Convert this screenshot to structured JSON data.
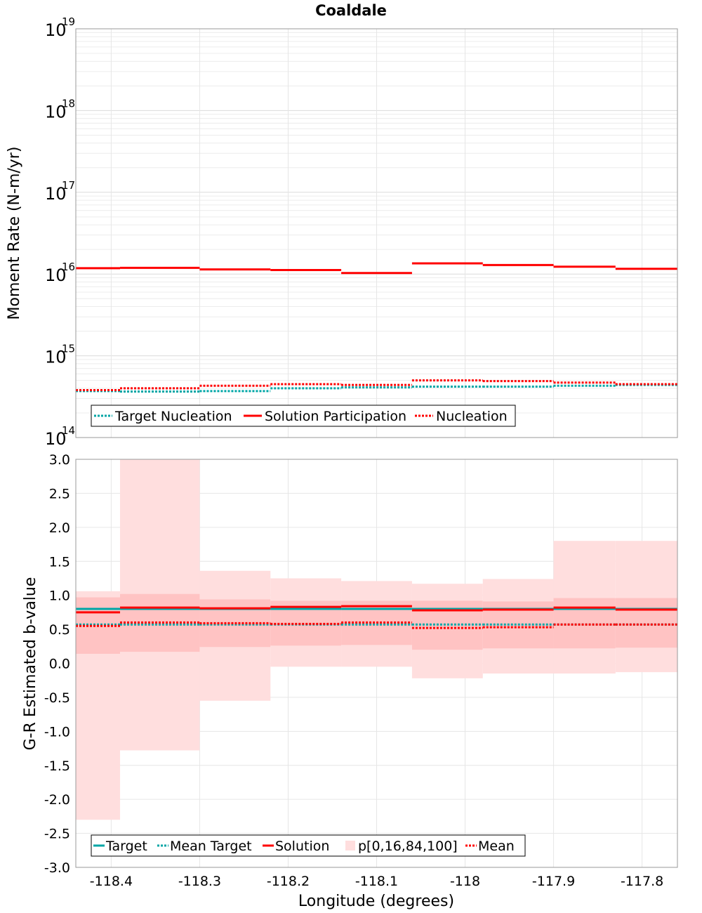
{
  "chart_data": [
    {
      "type": "line",
      "title": "Coaldale",
      "ylabel": "Moment Rate (N-m/yr)",
      "xlabel": "",
      "yscale": "log",
      "ylim": [
        100000000000000.0,
        1e+19
      ],
      "xlim": [
        -118.44,
        -117.76
      ],
      "y_tick_labels": [
        {
          "base": "10",
          "exp": "14"
        },
        {
          "base": "10",
          "exp": "15"
        },
        {
          "base": "10",
          "exp": "16"
        },
        {
          "base": "10",
          "exp": "17"
        },
        {
          "base": "10",
          "exp": "18"
        },
        {
          "base": "10",
          "exp": "19"
        }
      ],
      "bin_edges": [
        -118.44,
        -118.39,
        -118.3,
        -118.22,
        -118.14,
        -118.06,
        -117.98,
        -117.9,
        -117.83,
        -117.76
      ],
      "legend": {
        "placement": "bottom-left",
        "entries": [
          "Target Nucleation",
          "Solution Participation",
          "Nucleation"
        ]
      },
      "series": [
        {
          "name": "Target Nucleation",
          "style": "dotted",
          "color": "#00a6a6",
          "values": [
            370000000000000.0,
            365000000000000.0,
            370000000000000.0,
            400000000000000.0,
            410000000000000.0,
            420000000000000.0,
            420000000000000.0,
            430000000000000.0,
            440000000000000.0
          ]
        },
        {
          "name": "Solution Participation",
          "style": "solid",
          "color": "#ff0000",
          "values": [
            1.18e+16,
            1.19e+16,
            1.14e+16,
            1.12e+16,
            1.03e+16,
            1.35e+16,
            1.29e+16,
            1.23e+16,
            1.16e+16
          ]
        },
        {
          "name": "Nucleation",
          "style": "dotted",
          "color": "#ff0000",
          "values": [
            380000000000000.0,
            400000000000000.0,
            430000000000000.0,
            450000000000000.0,
            440000000000000.0,
            500000000000000.0,
            490000000000000.0,
            470000000000000.0,
            450000000000000.0
          ]
        }
      ]
    },
    {
      "type": "line",
      "title": "",
      "ylabel": "G-R Estimated b-value",
      "xlabel": "Longitude (degrees)",
      "ylim": [
        -3.0,
        3.0
      ],
      "xlim": [
        -118.44,
        -117.76
      ],
      "y_ticks": [
        {
          "v": 3.0,
          "label": "3.0"
        },
        {
          "v": 2.5,
          "label": "2.5"
        },
        {
          "v": 2.0,
          "label": "2.0"
        },
        {
          "v": 1.5,
          "label": "1.5"
        },
        {
          "v": 1.0,
          "label": "1.0"
        },
        {
          "v": 0.5,
          "label": "0.5"
        },
        {
          "v": 0.0,
          "label": "0.0"
        },
        {
          "v": -0.5,
          "label": "-0.5"
        },
        {
          "v": -1.0,
          "label": "-1.0"
        },
        {
          "v": -1.5,
          "label": "-1.5"
        },
        {
          "v": -2.0,
          "label": "-2.0"
        },
        {
          "v": -2.5,
          "label": "-2.5"
        },
        {
          "v": -3.0,
          "label": "-3.0"
        }
      ],
      "x_ticks": [
        {
          "v": -118.4,
          "label": "-118.4"
        },
        {
          "v": -118.3,
          "label": "-118.3"
        },
        {
          "v": -118.2,
          "label": "-118.2"
        },
        {
          "v": -118.1,
          "label": "-118.1"
        },
        {
          "v": -118.0,
          "label": "-118"
        },
        {
          "v": -117.9,
          "label": "-117.9"
        },
        {
          "v": -117.8,
          "label": "-117.8"
        }
      ],
      "bin_edges": [
        -118.44,
        -118.39,
        -118.3,
        -118.22,
        -118.14,
        -118.06,
        -117.98,
        -117.9,
        -117.83,
        -117.76
      ],
      "legend": {
        "placement": "bottom-left",
        "entries": [
          "Target",
          "Mean Target",
          "Solution",
          "p[0,16,84,100]",
          "Mean"
        ]
      },
      "bands": {
        "name": "p[0,16,84,100]",
        "p0": [
          -2.3,
          -1.28,
          -0.55,
          -0.05,
          -0.05,
          -0.22,
          -0.15,
          -0.15,
          -0.13
        ],
        "p16": [
          0.14,
          0.17,
          0.24,
          0.26,
          0.27,
          0.2,
          0.22,
          0.22,
          0.23
        ],
        "p84": [
          0.97,
          1.02,
          0.94,
          0.92,
          0.92,
          0.92,
          0.91,
          0.96,
          0.96
        ],
        "p100": [
          1.06,
          3.0,
          1.36,
          1.25,
          1.21,
          1.17,
          1.24,
          1.8,
          1.8
        ]
      },
      "series": [
        {
          "name": "Target",
          "style": "solid",
          "color": "#00a6a6",
          "values": [
            0.8,
            0.8,
            0.8,
            0.8,
            0.8,
            0.8,
            0.8,
            0.8,
            0.8
          ]
        },
        {
          "name": "Mean Target",
          "style": "dotted",
          "color": "#00a6a6",
          "values": [
            0.57,
            0.57,
            0.57,
            0.57,
            0.57,
            0.57,
            0.57,
            0.57,
            0.57
          ]
        },
        {
          "name": "Solution",
          "style": "solid",
          "color": "#ff0000",
          "values": [
            0.75,
            0.82,
            0.81,
            0.83,
            0.84,
            0.78,
            0.79,
            0.82,
            0.79
          ]
        },
        {
          "name": "Mean",
          "style": "dotted",
          "color": "#ff0000",
          "values": [
            0.55,
            0.6,
            0.59,
            0.58,
            0.6,
            0.52,
            0.53,
            0.57,
            0.57
          ]
        }
      ]
    }
  ]
}
